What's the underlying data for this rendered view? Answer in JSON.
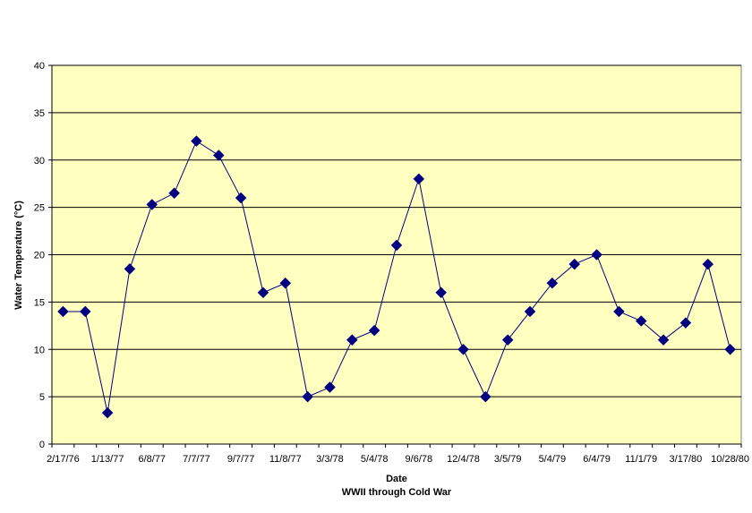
{
  "chart_data": {
    "type": "line",
    "xlabel": "Date",
    "subtitle": "WWII through Cold War",
    "ylabel": "Water Temperature (°C)",
    "ylim": [
      0,
      40
    ],
    "y_ticks": [
      0,
      5,
      10,
      15,
      20,
      25,
      30,
      35,
      40
    ],
    "x_tick_labels": [
      "2/17/76",
      "1/13/77",
      "6/8/77",
      "7/7/77",
      "9/7/77",
      "11/8/77",
      "3/3/78",
      "5/4/78",
      "9/6/78",
      "12/4/78",
      "3/5/79",
      "5/4/79",
      "6/4/79",
      "11/1/79",
      "3/17/80",
      "10/28/80"
    ],
    "grid": true,
    "legend": "none",
    "colors": {
      "plot_background": "#FFFFC0",
      "series": "#000080",
      "gridline": "#000000"
    },
    "series": [
      {
        "values": [
          14,
          14,
          3.3,
          18.5,
          25.3,
          26.5,
          32,
          30.5,
          26,
          16,
          17,
          5,
          6,
          11,
          12,
          21,
          28,
          16,
          10,
          5,
          11,
          14,
          17,
          19,
          20,
          14,
          13,
          11,
          12.8,
          19,
          10
        ]
      }
    ]
  }
}
